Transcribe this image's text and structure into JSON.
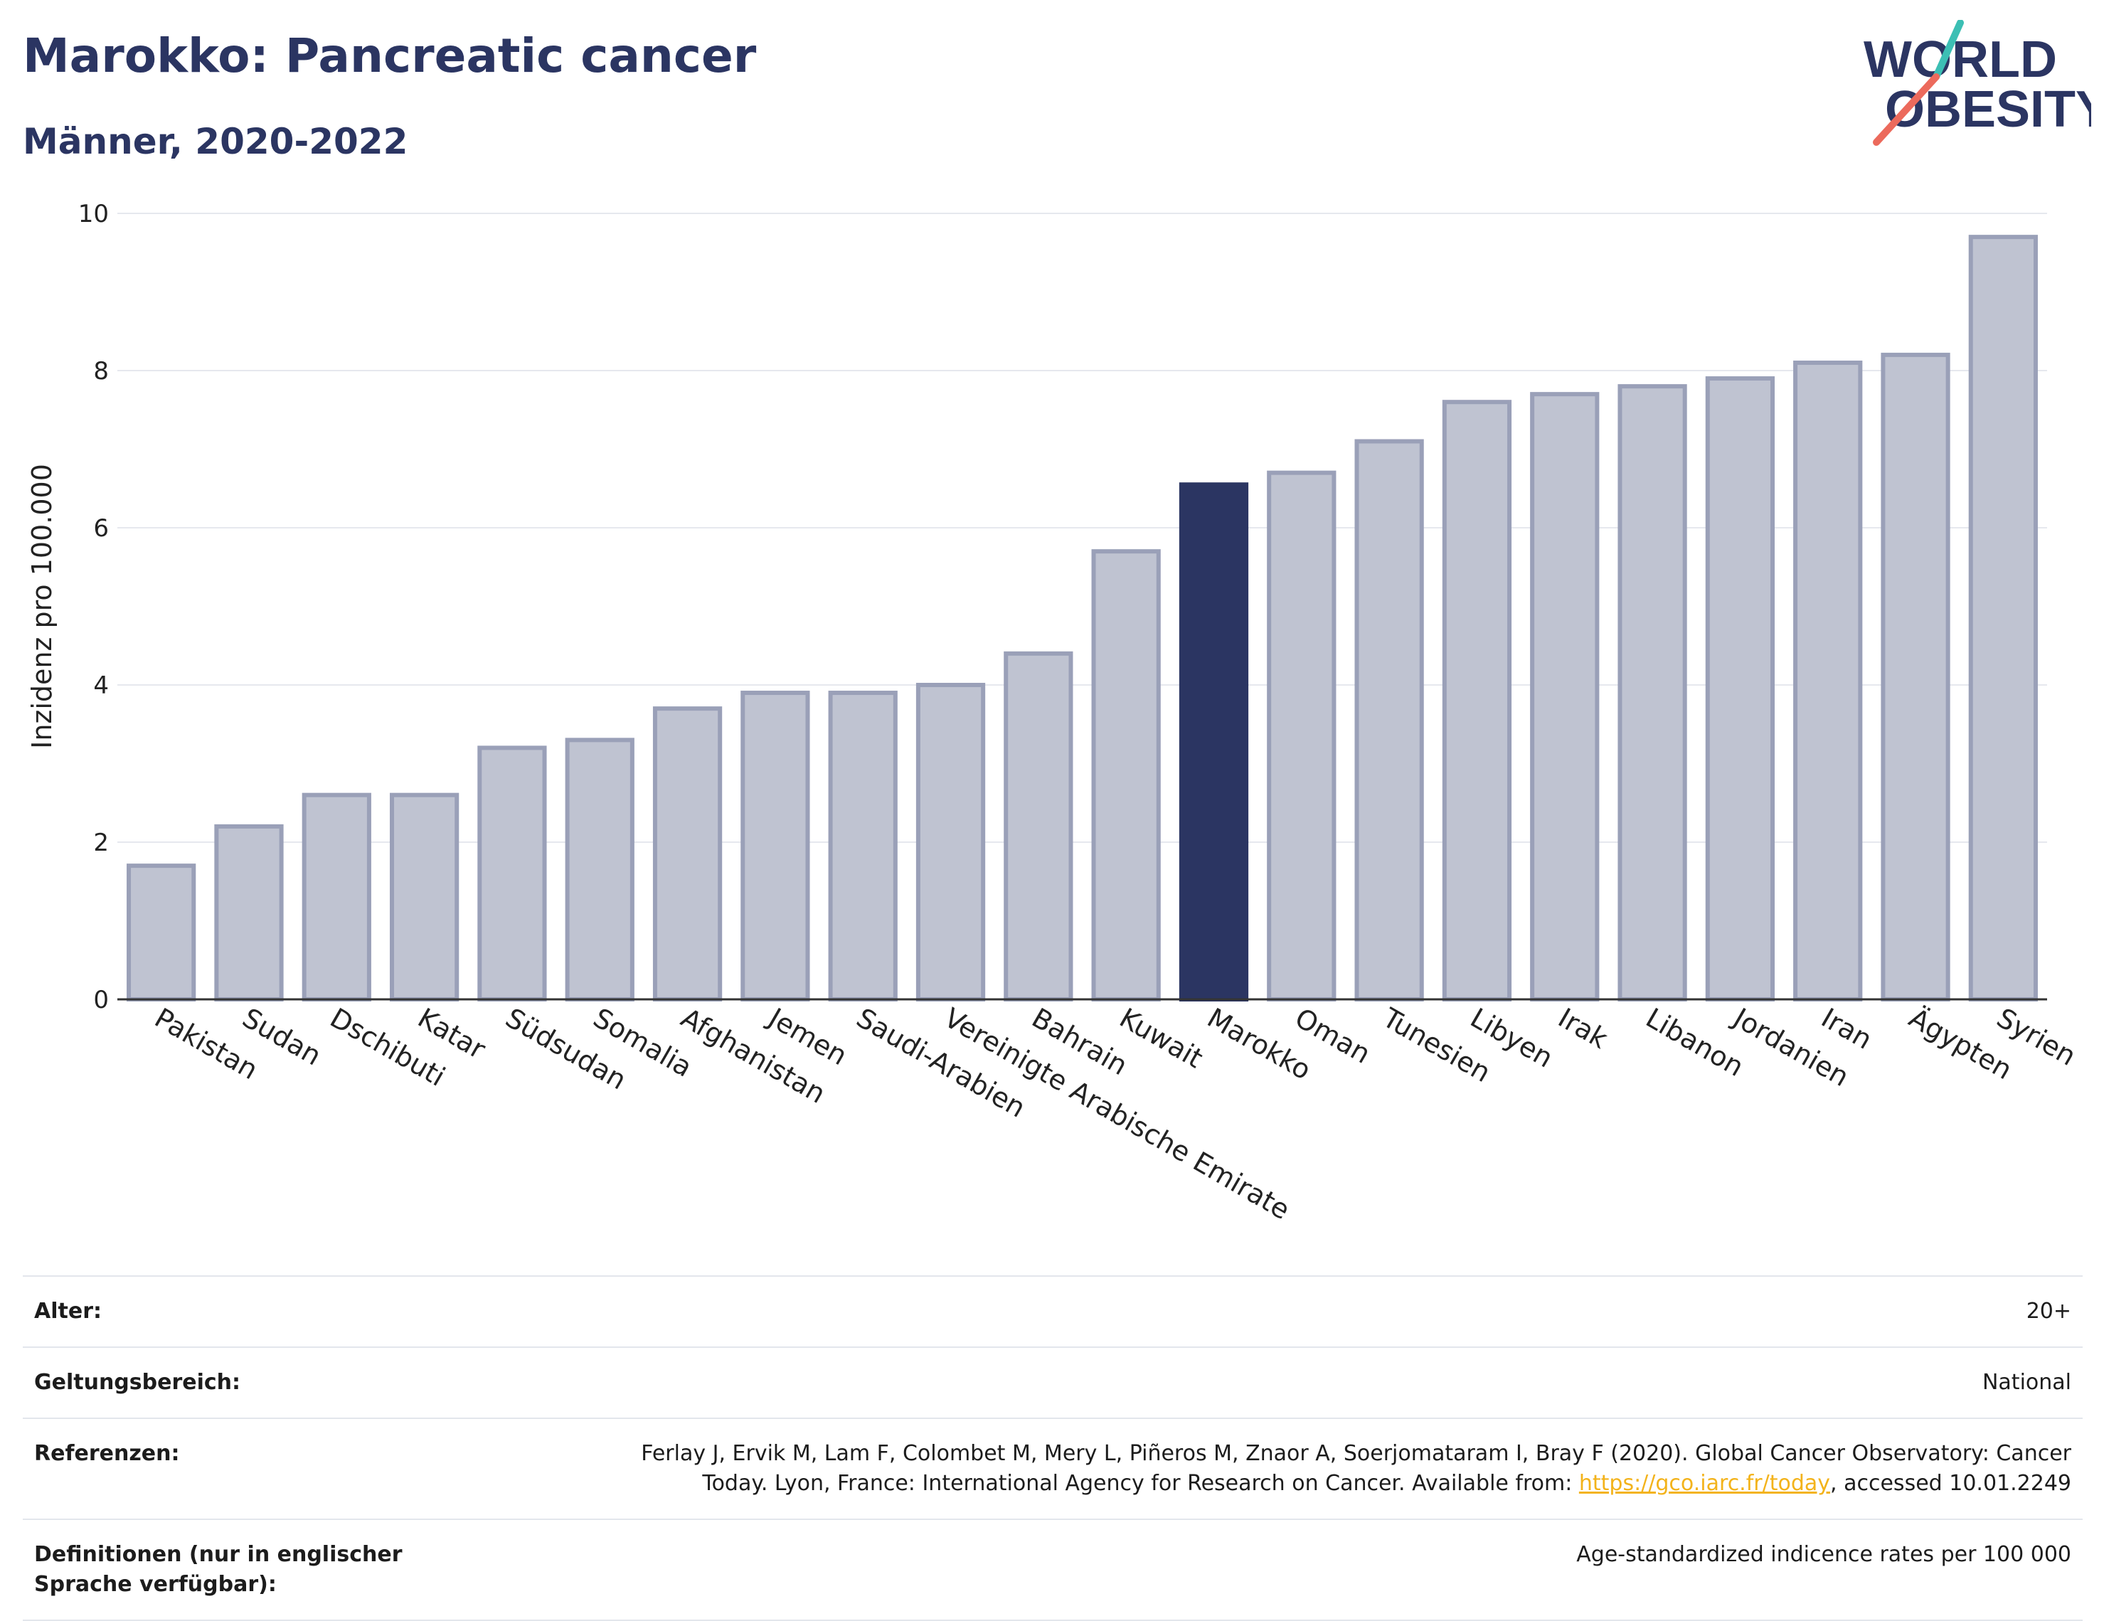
{
  "header": {
    "title": "Marokko: Pancreatic cancer",
    "subtitle": "Männer, 2020-2022"
  },
  "logo": {
    "line1": "WORLD",
    "line2": "OBESITY"
  },
  "colors": {
    "highlight_bar": "#2b3562",
    "bar_fill": "#bfc3d1",
    "bar_stroke": "#9aa0b8",
    "title": "#2b3562",
    "logo_teal": "#3cbfb4",
    "logo_coral": "#ec6a5c",
    "link": "#f3b31b"
  },
  "chart_data": {
    "type": "bar",
    "ylabel": "Inzidenz pro 100.000",
    "xlabel": "",
    "ylim": [
      0,
      10
    ],
    "yticks": [
      0,
      2,
      4,
      6,
      8,
      10
    ],
    "grid": true,
    "highlight": "Marokko",
    "categories": [
      "Pakistan",
      "Sudan",
      "Dschibuti",
      "Katar",
      "Südsudan",
      "Somalia",
      "Afghanistan",
      "Jemen",
      "Saudi-Arabien",
      "Vereinigte Arabische Emirate",
      "Bahrain",
      "Kuwait",
      "Marokko",
      "Oman",
      "Tunesien",
      "Libyen",
      "Irak",
      "Libanon",
      "Jordanien",
      "Iran",
      "Ägypten",
      "Syrien"
    ],
    "values": [
      1.7,
      2.2,
      2.6,
      2.6,
      3.2,
      3.3,
      3.7,
      3.9,
      3.9,
      4.0,
      4.4,
      5.7,
      6.55,
      6.7,
      7.1,
      7.6,
      7.7,
      7.8,
      7.9,
      8.1,
      8.2,
      9.7
    ]
  },
  "info": {
    "rows": [
      {
        "label": "Alter:",
        "value": "20+"
      },
      {
        "label": "Geltungsbereich:",
        "value": "National"
      }
    ],
    "references": {
      "label": "Referenzen:",
      "text_line1": "Ferlay J, Ervik M, Lam F, Colombet M, Mery L, Piñeros M, Znaor A, Soerjomataram I, Bray F (2020). Global Cancer Observatory: Cancer",
      "text_line2_before": "Today. Lyon, France: International Agency for Research on Cancer. Available from: ",
      "link": "https://gco.iarc.fr/today",
      "text_line2_after": ", accessed 10.01.2249"
    },
    "definitions": {
      "label": "Definitionen (nur in englischer Sprache verfügbar):",
      "value": "Age-standardized indicence rates per 100 000"
    }
  }
}
